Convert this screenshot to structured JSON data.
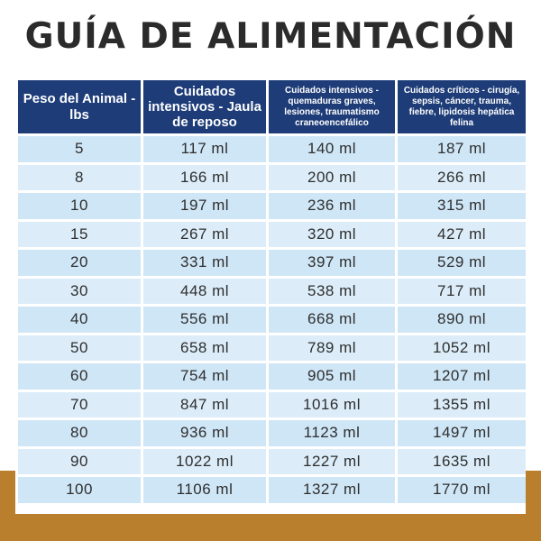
{
  "title": "GUÍA DE ALIMENTACIÓN",
  "table": {
    "headers": [
      "Peso del Animal - lbs",
      "Cuidados intensivos - Jaula de reposo",
      "Cuidados intensivos - quemaduras graves, lesiones, traumatismo craneoencefálico",
      "Cuidados críticos - cirugía, sepsis, cáncer, trauma, fiebre, lipidosis hepática felina"
    ],
    "rows": [
      [
        "5",
        "117 ml",
        "140 ml",
        "187 ml"
      ],
      [
        "8",
        "166 ml",
        "200 ml",
        "266 ml"
      ],
      [
        "10",
        "197 ml",
        "236 ml",
        "315 ml"
      ],
      [
        "15",
        "267 ml",
        "320 ml",
        "427 ml"
      ],
      [
        "20",
        "331 ml",
        "397 ml",
        "529 ml"
      ],
      [
        "30",
        "448 ml",
        "538 ml",
        "717 ml"
      ],
      [
        "40",
        "556 ml",
        "668 ml",
        "890 ml"
      ],
      [
        "50",
        "658 ml",
        "789 ml",
        "1052 ml"
      ],
      [
        "60",
        "754 ml",
        "905 ml",
        "1207 ml"
      ],
      [
        "70",
        "847 ml",
        "1016 ml",
        "1355 ml"
      ],
      [
        "80",
        "936 ml",
        "1123 ml",
        "1497 ml"
      ],
      [
        "90",
        "1022 ml",
        "1227 ml",
        "1635 ml"
      ],
      [
        "100",
        "1106 ml",
        "1327 ml",
        "1770 ml"
      ]
    ]
  },
  "colors": {
    "header_bg": "#1d3c78",
    "row_bg_a": "#cfe6f6",
    "row_bg_b": "#dcedf9",
    "bottom_band": "#b97f2c",
    "title_text": "#2b2b2b"
  }
}
